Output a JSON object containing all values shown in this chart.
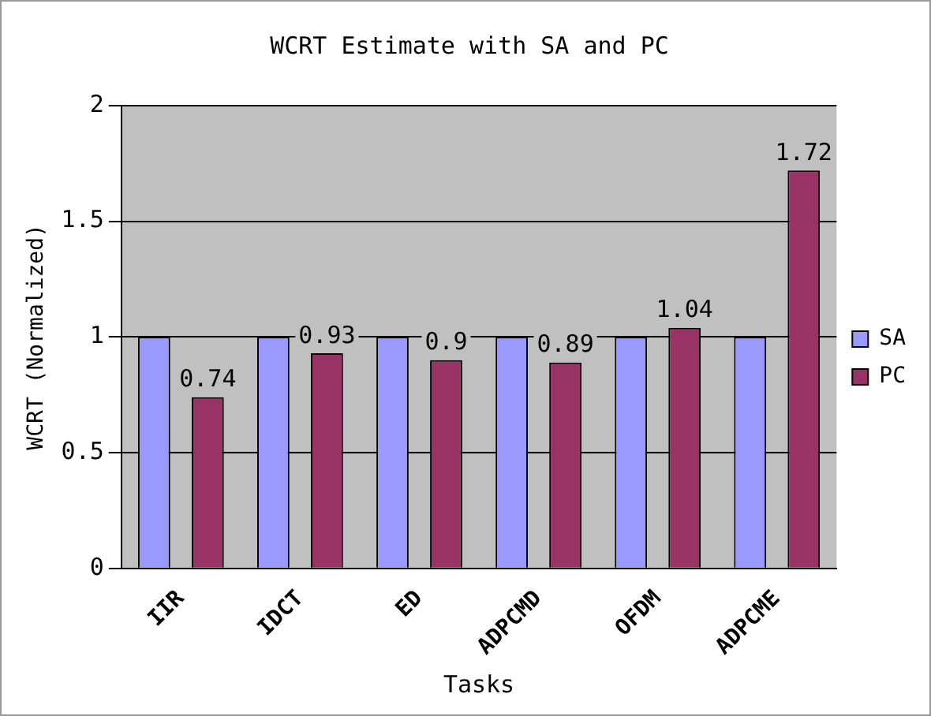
{
  "chart_data": {
    "type": "bar",
    "title": "WCRT Estimate with SA and PC",
    "xlabel": "Tasks",
    "ylabel": "WCRT (Normalized)",
    "categories": [
      "IIR",
      "IDCT",
      "ED",
      "ADPCMD",
      "OFDM",
      "ADPCME"
    ],
    "series": [
      {
        "name": "SA",
        "color": "#9999ff",
        "values": [
          1,
          1,
          1,
          1,
          1,
          1
        ]
      },
      {
        "name": "PC",
        "color": "#993366",
        "values": [
          0.74,
          0.93,
          0.9,
          0.89,
          1.04,
          1.72
        ],
        "value_labels": [
          "0.74",
          "0.93",
          "0.9",
          "0.89",
          "1.04",
          "1.72"
        ]
      }
    ],
    "ylim": [
      0,
      2
    ],
    "yticks": [
      0,
      0.5,
      1,
      1.5,
      2
    ],
    "grid": "y",
    "legend": "right"
  }
}
